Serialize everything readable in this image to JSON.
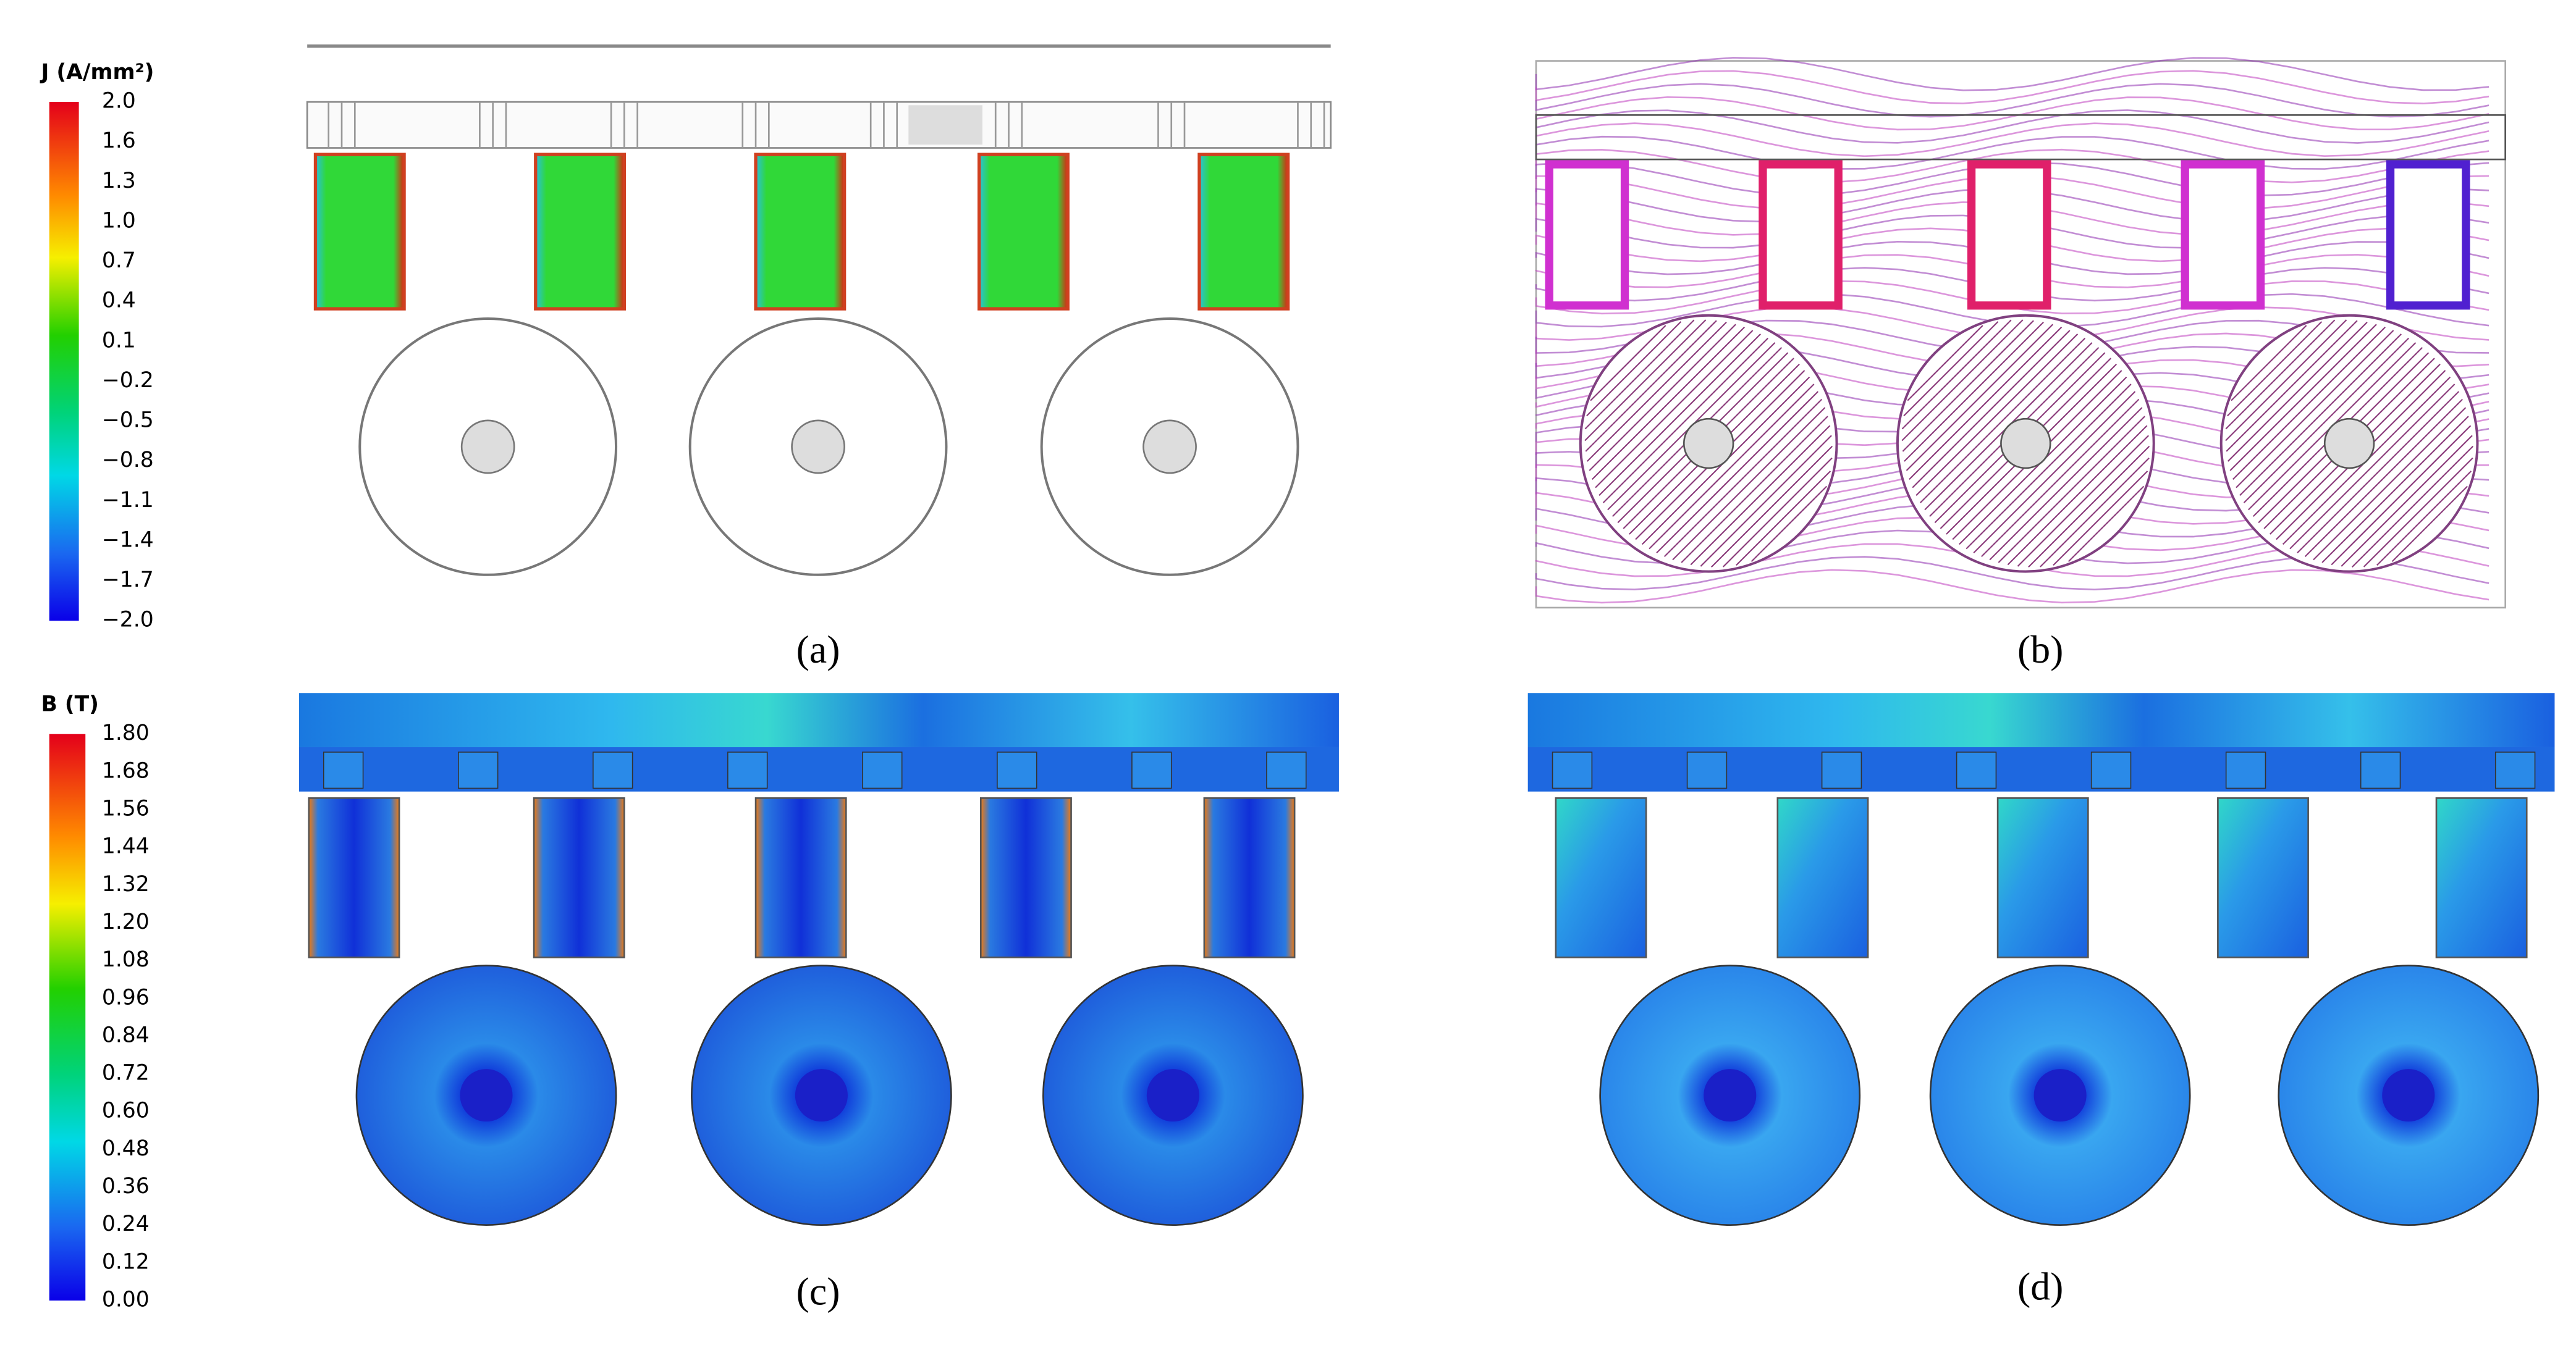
{
  "colorbars": [
    {
      "title": "J (A/mm²)",
      "ticks": [
        "2.0",
        "1.6",
        "1.3",
        "1.0",
        "0.7",
        "0.4",
        "0.1",
        "−0.2",
        "−0.5",
        "−0.8",
        "−1.1",
        "−1.4",
        "−1.7",
        "−2.0"
      ]
    },
    {
      "title": "B (T)",
      "ticks": [
        "1.80",
        "1.68",
        "1.56",
        "1.44",
        "1.32",
        "1.20",
        "1.08",
        "0.96",
        "0.84",
        "0.72",
        "0.60",
        "0.48",
        "0.36",
        "0.24",
        "0.12",
        "0.00"
      ]
    }
  ],
  "panels": [
    {
      "label": "(a)"
    },
    {
      "label": "(b)"
    },
    {
      "label": "(c)"
    },
    {
      "label": "(d)"
    }
  ]
}
